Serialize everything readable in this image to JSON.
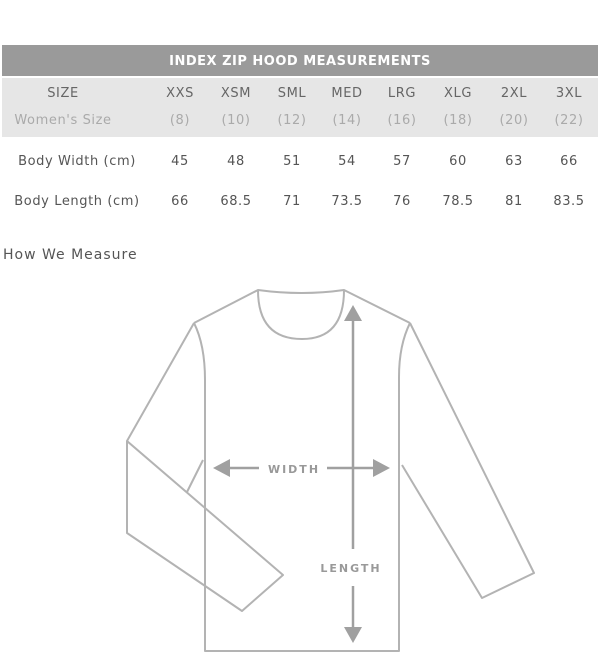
{
  "table": {
    "title": "INDEX ZIP HOOD MEASUREMENTS",
    "header": {
      "label": "SIZE",
      "values": [
        "XXS",
        "XSM",
        "SML",
        "MED",
        "LRG",
        "XLG",
        "2XL",
        "3XL"
      ]
    },
    "womens": {
      "label": "Women's Size",
      "values": [
        "(8)",
        "(10)",
        "(12)",
        "(14)",
        "(16)",
        "(18)",
        "(20)",
        "(22)"
      ]
    },
    "rows": [
      {
        "label": "Body Width (cm)",
        "values": [
          "45",
          "48",
          "51",
          "54",
          "57",
          "60",
          "63",
          "66"
        ]
      },
      {
        "label": "Body Length (cm)",
        "values": [
          "66",
          "68.5",
          "71",
          "73.5",
          "76",
          "78.5",
          "81",
          "83.5"
        ]
      }
    ]
  },
  "section_title": "How We Measure",
  "diagram": {
    "width_label": "WIDTH",
    "length_label": "LENGTH",
    "line_color": "#b3b3b3",
    "arrow_color": "#a0a0a0"
  },
  "colors": {
    "header_bg": "#9a9a9a",
    "band_bg": "#e6e6e6"
  }
}
